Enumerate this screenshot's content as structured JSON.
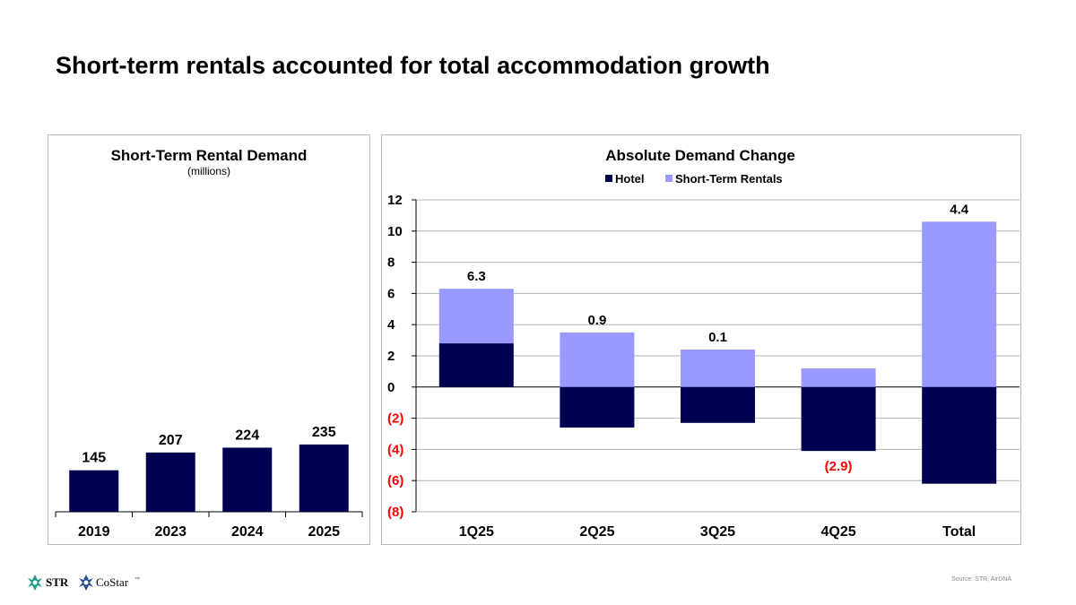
{
  "page": {
    "title": "Short-term rentals accounted for total accommodation growth"
  },
  "chart_data": [
    {
      "type": "bar",
      "title": "Short-Term Rental Demand",
      "subtitle": "(millions)",
      "categories": [
        "2019",
        "2023",
        "2024",
        "2025"
      ],
      "values": [
        145,
        207,
        224,
        235
      ],
      "data_labels": [
        "145",
        "207",
        "224",
        "235"
      ],
      "ylim": [
        0,
        260
      ],
      "color": "#000050",
      "xlabel": "",
      "ylabel": ""
    },
    {
      "type": "bar",
      "stacked": true,
      "title": "Absolute Demand Change",
      "categories": [
        "1Q25",
        "2Q25",
        "3Q25",
        "4Q25",
        "Total"
      ],
      "series": [
        {
          "name": "Hotel",
          "color": "#000050",
          "values": [
            2.8,
            -2.6,
            -2.3,
            -4.1,
            -6.2
          ]
        },
        {
          "name": "Short-Term Rentals",
          "color": "#9999ff",
          "values": [
            3.5,
            3.5,
            2.4,
            1.2,
            10.6
          ]
        }
      ],
      "totals": [
        "6.3",
        "0.9",
        "0.1",
        "(2.9)",
        "4.4"
      ],
      "total_label_colors": [
        "#000000",
        "#000000",
        "#000000",
        "#ff0000",
        "#000000"
      ],
      "ylim": [
        -8,
        12
      ],
      "yticks": [
        12,
        10,
        8,
        6,
        4,
        2,
        0,
        -2,
        -4,
        -6,
        -8
      ],
      "ytick_labels": [
        "12",
        "10",
        "8",
        "6",
        "4",
        "2",
        "0",
        "(2)",
        "(4)",
        "(6)",
        "(8)"
      ],
      "negative_tick_color": "#ff0000",
      "grid": true,
      "legend_position": "top-center"
    }
  ],
  "footer": {
    "logo_str": "STR",
    "logo_costar": "CoStar",
    "logo_tm": "™",
    "source": "Source: STR, AirDNA"
  },
  "colors": {
    "navy": "#000050",
    "lavender": "#9999ff",
    "negative": "#ff0000",
    "grid": "#b3b3b3"
  }
}
